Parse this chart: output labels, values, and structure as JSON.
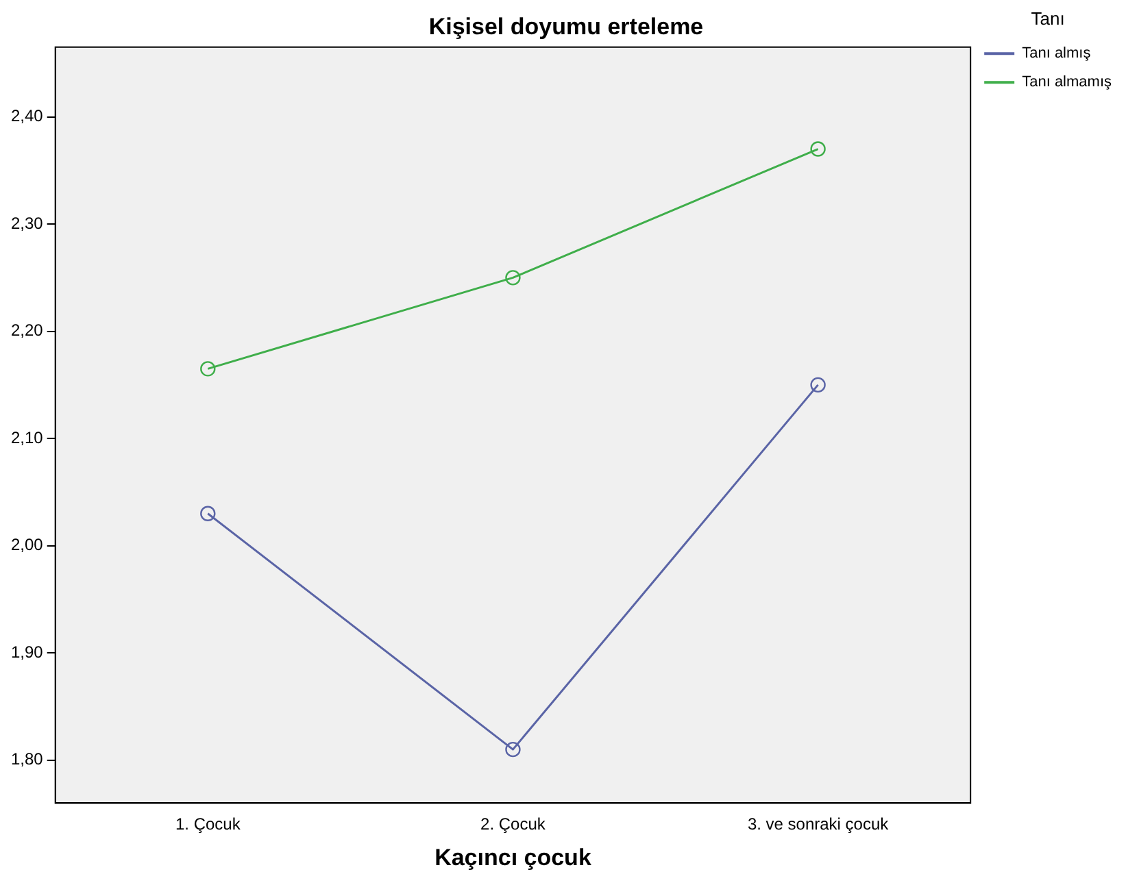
{
  "chart_data": {
    "type": "line",
    "title": "Kişisel doyumu erteleme",
    "xlabel": "Kaçıncı çocuk",
    "legend_title": "Tanı",
    "categories": [
      "1. Çocuk",
      "2. Çocuk",
      "3. ve sonraki çocuk"
    ],
    "series": [
      {
        "name": "Tanı almış",
        "color": "#5a64a6",
        "values": [
          2.03,
          1.81,
          2.15
        ]
      },
      {
        "name": "Tanı almamış",
        "color": "#3fae4a",
        "values": [
          2.165,
          2.25,
          2.37
        ]
      }
    ],
    "ylim": [
      1.76,
      2.465
    ],
    "yticks": [
      {
        "value": 1.8,
        "label": "1,80"
      },
      {
        "value": 1.9,
        "label": "1,90"
      },
      {
        "value": 2.0,
        "label": "2,00"
      },
      {
        "value": 2.1,
        "label": "2,10"
      },
      {
        "value": 2.2,
        "label": "2,20"
      },
      {
        "value": 2.3,
        "label": "2,30"
      },
      {
        "value": 2.4,
        "label": "2,40"
      }
    ],
    "grid": false,
    "legend": "top right",
    "marker": "circle",
    "line_style": "solid"
  }
}
